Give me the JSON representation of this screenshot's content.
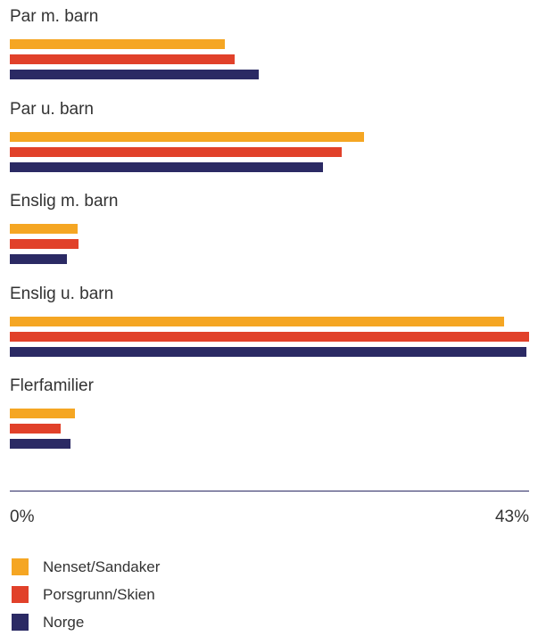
{
  "chart_data": {
    "type": "bar",
    "orientation": "horizontal",
    "categories": [
      "Par m. barn",
      "Par u. barn",
      "Enslig m. barn",
      "Enslig u. barn",
      "Flerfamilier"
    ],
    "series": [
      {
        "name": "Nenset/Sandaker",
        "color": "#f5a623",
        "values": [
          17.8,
          29.3,
          5.6,
          40.9,
          5.4
        ]
      },
      {
        "name": "Porsgrunn/Skien",
        "color": "#e1412a",
        "values": [
          18.6,
          27.5,
          5.7,
          43.0,
          4.2
        ]
      },
      {
        "name": "Norge",
        "color": "#2b2a64",
        "values": [
          20.6,
          25.9,
          4.7,
          42.8,
          5.0
        ]
      }
    ],
    "xlim": [
      0,
      43
    ],
    "tick_labels": [
      "0%",
      "43%"
    ],
    "legend_position": "bottom-left",
    "grid": false
  }
}
